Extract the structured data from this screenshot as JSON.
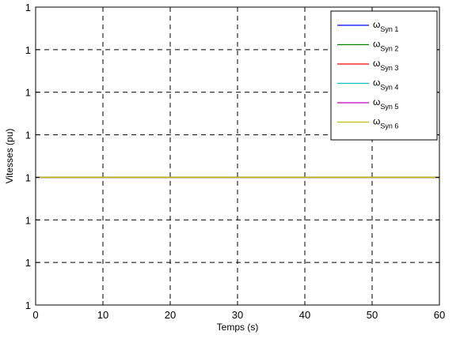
{
  "chart_data": {
    "type": "line",
    "title": "",
    "xlabel": "Temps (s)",
    "ylabel": "Vitesses (pu)",
    "xlim": [
      0,
      60
    ],
    "ylim": [
      0,
      7
    ],
    "x_ticks": [
      0,
      10,
      20,
      30,
      40,
      50,
      60
    ],
    "x_tick_labels": [
      "0",
      "10",
      "20",
      "30",
      "40",
      "50",
      "60"
    ],
    "y_tick_labels": [
      "1",
      "1",
      "1",
      "1",
      "1",
      "1",
      "1",
      "1"
    ],
    "grid": true,
    "legend_position": "top-right",
    "series": [
      {
        "name": "ωSyn 1",
        "symbol": "ω",
        "subscript": "Syn 1",
        "color": "#0000ff",
        "x": [
          0,
          60
        ],
        "y": [
          3,
          3
        ]
      },
      {
        "name": "ωSyn 2",
        "symbol": "ω",
        "subscript": "Syn 2",
        "color": "#008000",
        "x": [
          0,
          60
        ],
        "y": [
          3,
          3
        ]
      },
      {
        "name": "ωSyn 3",
        "symbol": "ω",
        "subscript": "Syn 3",
        "color": "#ff0000",
        "x": [
          0,
          60
        ],
        "y": [
          3,
          3
        ]
      },
      {
        "name": "ωSyn 4",
        "symbol": "ω",
        "subscript": "Syn 4",
        "color": "#00bfbf",
        "x": [
          0,
          60
        ],
        "y": [
          3,
          3
        ]
      },
      {
        "name": "ωSyn 5",
        "symbol": "ω",
        "subscript": "Syn 5",
        "color": "#bf00bf",
        "x": [
          0,
          60
        ],
        "y": [
          3,
          3
        ]
      },
      {
        "name": "ωSyn 6",
        "symbol": "ω",
        "subscript": "Syn 6",
        "color": "#bfbf00",
        "x": [
          0,
          60
        ],
        "y": [
          3,
          3
        ]
      }
    ]
  }
}
